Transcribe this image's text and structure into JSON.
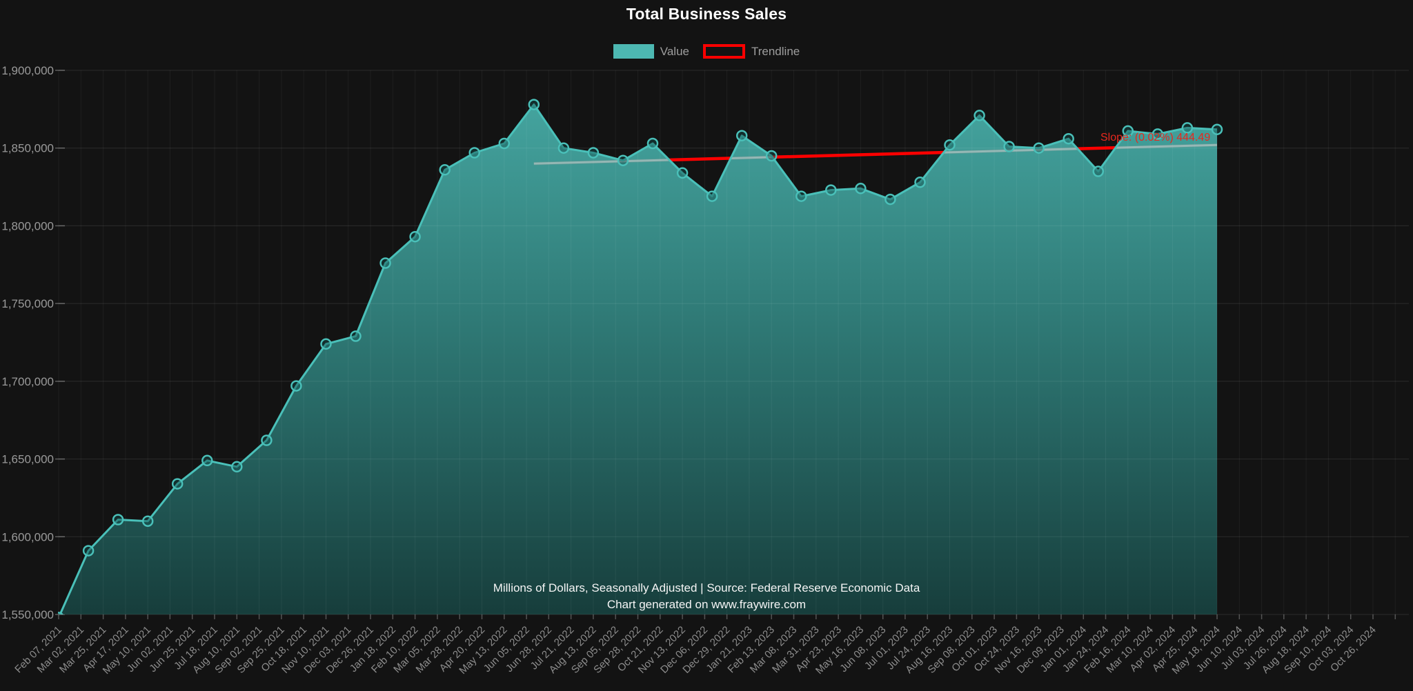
{
  "page": {
    "background_color": "#131313"
  },
  "chart_data": {
    "type": "area",
    "title": "Total Business Sales",
    "legend_position": "top",
    "legend": [
      {
        "label": "Value",
        "swatch_style": "filled",
        "swatch_color": "#4db8b2"
      },
      {
        "label": "Trendline",
        "swatch_style": "outline",
        "swatch_color": "#ff0000"
      }
    ],
    "grid": "on",
    "ylim": [
      1550000,
      1900000
    ],
    "y_ticks": [
      "1,900,000",
      "1,850,000",
      "1,800,000",
      "1,750,000",
      "1,700,000",
      "1,650,000",
      "1,600,000",
      "1,550,000"
    ],
    "x_labels": [
      "Feb 07, 2021",
      "Mar 02, 2021",
      "Mar 25, 2021",
      "Apr 17, 2021",
      "May 10, 2021",
      "Jun 02, 2021",
      "Jun 25, 2021",
      "Jul 18, 2021",
      "Aug 10, 2021",
      "Sep 02, 2021",
      "Sep 25, 2021",
      "Oct 18, 2021",
      "Nov 10, 2021",
      "Dec 03, 2021",
      "Dec 26, 2021",
      "Jan 18, 2022",
      "Feb 10, 2022",
      "Mar 05, 2022",
      "Mar 28, 2022",
      "Apr 20, 2022",
      "May 13, 2022",
      "Jun 05, 2022",
      "Jun 28, 2022",
      "Jul 21, 2022",
      "Aug 13, 2022",
      "Sep 05, 2022",
      "Sep 28, 2022",
      "Oct 21, 2022",
      "Nov 13, 2022",
      "Dec 06, 2022",
      "Dec 29, 2022",
      "Jan 21, 2023",
      "Feb 13, 2023",
      "Mar 08, 2023",
      "Mar 31, 2023",
      "Apr 23, 2023",
      "May 16, 2023",
      "Jun 08, 2023",
      "Jul 01, 2023",
      "Jul 24, 2023",
      "Aug 16, 2023",
      "Sep 08, 2023",
      "Oct 01, 2023",
      "Oct 24, 2023",
      "Nov 16, 2023",
      "Dec 09, 2023",
      "Jan 01, 2024",
      "Jan 24, 2024",
      "Feb 16, 2024",
      "Mar 10, 2024",
      "Apr 02, 2024",
      "Apr 25, 2024",
      "May 18, 2024",
      "Jun 10, 2024",
      "Jul 03, 2024",
      "Jul 26, 2024",
      "Aug 18, 2024",
      "Sep 10, 2024",
      "Oct 03, 2024",
      "Oct 26, 2024"
    ],
    "series": [
      {
        "name": "Value",
        "first_label_index": 0,
        "last_label_index": 52,
        "values": [
          1548000,
          1591000,
          1611000,
          1610000,
          1634000,
          1649000,
          1645000,
          1662000,
          1697000,
          1724000,
          1729000,
          1776000,
          1793000,
          1836000,
          1847000,
          1853000,
          1878000,
          1850000,
          1847000,
          1842000,
          1853000,
          1834000,
          1819000,
          1858000,
          1845000,
          1819000,
          1823000,
          1824000,
          1817000,
          1828000,
          1852000,
          1871000,
          1851000,
          1850000,
          1856000,
          1835000,
          1861000,
          1859000,
          1863000,
          1862000
        ]
      }
    ],
    "trendline": {
      "name": "Trendline",
      "from_point_index": 16,
      "to_point_index": 39,
      "start_value": 1840000,
      "end_value": 1852000,
      "slope_percent": "0.02%",
      "slope_per_point": 444.49
    },
    "annotations": {
      "slope_label": "Slope: (0.02%) 444.49"
    },
    "footer_line1": "Millions of Dollars, Seasonally Adjusted | Source: Federal Reserve Economic Data",
    "footer_line2": "Chart generated on www.fraywire.com",
    "colors": {
      "background": "#131313",
      "area_top": "#4dbbb5",
      "area_bottom": "#17413f",
      "line": "#4ac0b9",
      "trendline_red": "#ff0000",
      "trend_under_fill": "#d2d7d7",
      "axis_text": "#8d8d8d",
      "title_text": "#ffffff",
      "footer_text": "#f5f5f5",
      "annotation_text": "#e8281e"
    }
  }
}
